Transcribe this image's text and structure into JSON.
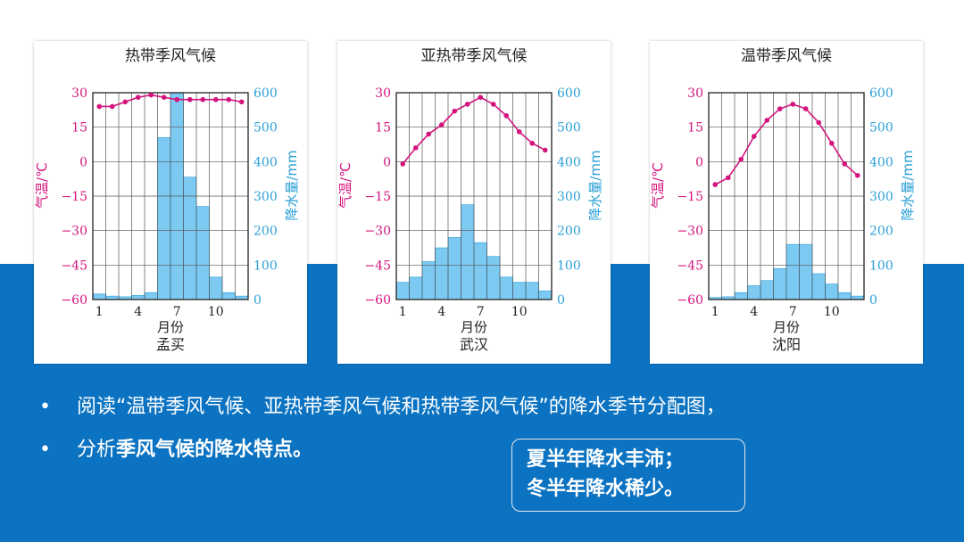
{
  "colors": {
    "temp": "#d4147d",
    "precip": "#7ccaf2",
    "precip_edge": "#2a9fd6",
    "band": "#0b73c2"
  },
  "chart_data": [
    {
      "type": "bar+line",
      "title": "热带季风气候",
      "city": "孟买",
      "xlabel": "月份",
      "ylabel_left": "气温/℃",
      "ylabel_right": "降水量/mm",
      "x_ticks": [
        "1",
        "4",
        "7",
        "10"
      ],
      "left_ticks": [
        "30",
        "15",
        "0",
        "−15",
        "−30",
        "−45",
        "−60"
      ],
      "right_ticks": [
        "600",
        "500",
        "400",
        "300",
        "200",
        "100",
        "0"
      ],
      "ylim_left": [
        -60,
        30
      ],
      "ylim_right": [
        0,
        600
      ],
      "months": [
        1,
        2,
        3,
        4,
        5,
        6,
        7,
        8,
        9,
        10,
        11,
        12
      ],
      "temperature": [
        24,
        24,
        26,
        28,
        29,
        28,
        27,
        27,
        27,
        27,
        27,
        26
      ],
      "precipitation": [
        16,
        10,
        8,
        12,
        20,
        470,
        610,
        355,
        270,
        65,
        20,
        10
      ]
    },
    {
      "type": "bar+line",
      "title": "亚热带季风气候",
      "city": "武汉",
      "xlabel": "月份",
      "ylabel_left": "气温/℃",
      "ylabel_right": "降水量/mm",
      "x_ticks": [
        "1",
        "4",
        "7",
        "10"
      ],
      "left_ticks": [
        "30",
        "15",
        "0",
        "−15",
        "−30",
        "−45",
        "−60"
      ],
      "right_ticks": [
        "600",
        "500",
        "400",
        "300",
        "200",
        "100",
        "0"
      ],
      "ylim_left": [
        -60,
        30
      ],
      "ylim_right": [
        0,
        600
      ],
      "months": [
        1,
        2,
        3,
        4,
        5,
        6,
        7,
        8,
        9,
        10,
        11,
        12
      ],
      "temperature": [
        -1,
        6,
        12,
        16,
        22,
        25,
        28,
        25,
        20,
        13,
        8,
        5
      ],
      "precipitation": [
        50,
        65,
        110,
        150,
        180,
        275,
        165,
        125,
        65,
        50,
        50,
        25
      ]
    },
    {
      "type": "bar+line",
      "title": "温带季风气候",
      "city": "沈阳",
      "xlabel": "月份",
      "ylabel_left": "气温/℃",
      "ylabel_right": "降水量/mm",
      "x_ticks": [
        "1",
        "4",
        "7",
        "10"
      ],
      "left_ticks": [
        "30",
        "15",
        "0",
        "−15",
        "−30",
        "−45",
        "−60"
      ],
      "right_ticks": [
        "600",
        "500",
        "400",
        "300",
        "200",
        "100",
        "0"
      ],
      "ylim_left": [
        -60,
        30
      ],
      "ylim_right": [
        0,
        600
      ],
      "months": [
        1,
        2,
        3,
        4,
        5,
        6,
        7,
        8,
        9,
        10,
        11,
        12
      ],
      "temperature": [
        -10,
        -7,
        1,
        11,
        18,
        23,
        25,
        23,
        17,
        8,
        -1,
        -6
      ],
      "precipitation": [
        6,
        8,
        20,
        40,
        55,
        90,
        160,
        160,
        75,
        45,
        20,
        10
      ]
    }
  ],
  "bullets": {
    "line1": "阅读“温带季风气候、亚热带季风气候和热带季风气候”的降水季节分配图，",
    "line2_prefix": "分析",
    "line2_bold": "季风气候的降水特点。"
  },
  "answer": {
    "line1": "夏半年降水丰沛；",
    "line2": "冬半年降水稀少。"
  }
}
